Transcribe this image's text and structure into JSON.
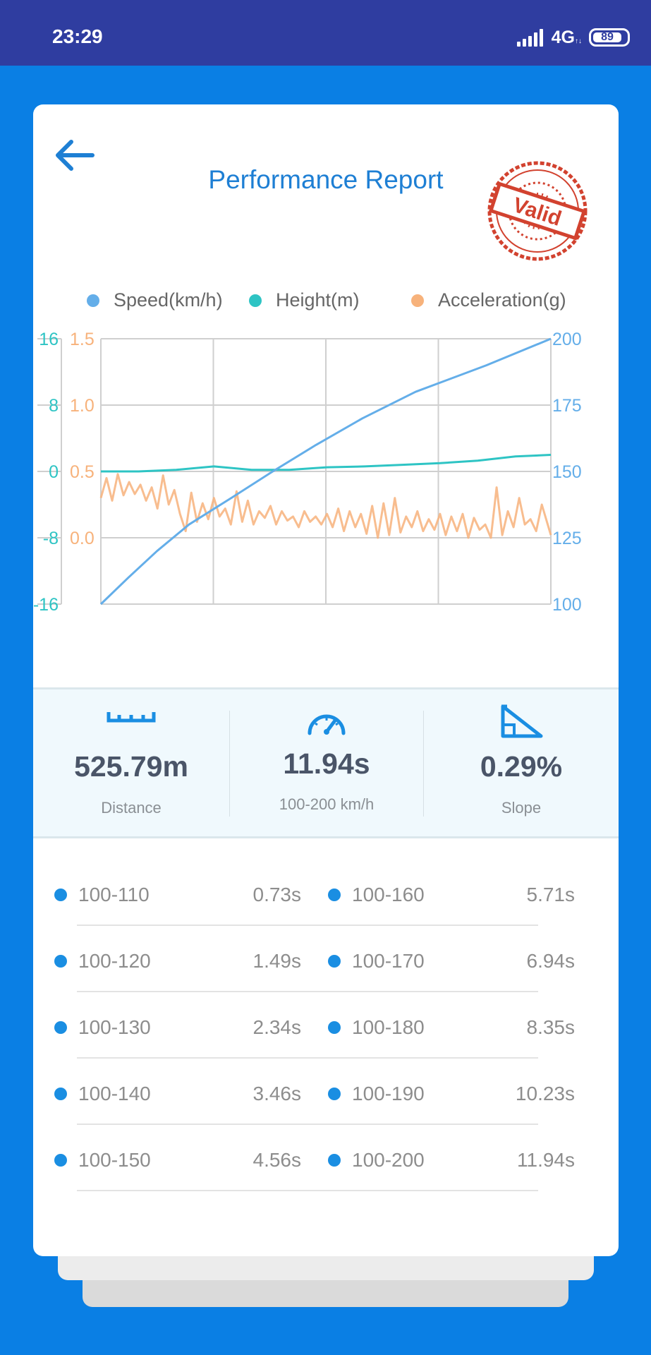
{
  "status_bar": {
    "time": "23:29",
    "network": "4G",
    "battery": "89"
  },
  "header": {
    "title": "Performance Report",
    "stamp_text": "Valid",
    "back_icon": "arrow-left-icon"
  },
  "colors": {
    "speed": "#64aee9",
    "height": "#2ec4c4",
    "acceleration": "#f7b27b",
    "accent": "#1e7fd4",
    "stamp": "#d2422f"
  },
  "chart_data": {
    "type": "line",
    "legend": [
      "Speed(km/h)",
      "Height(m)",
      "Acceleration(g)"
    ],
    "axes": {
      "height_left": {
        "ticks": [
          "16",
          "8",
          "0",
          "-8",
          "-16"
        ],
        "range": [
          -16,
          16
        ]
      },
      "accel_left": {
        "ticks": [
          "1.5",
          "1.0",
          "0.5",
          "0.0"
        ],
        "range": [
          -0.5,
          1.5
        ]
      },
      "speed_right": {
        "ticks": [
          "200",
          "175",
          "150",
          "125",
          "100"
        ],
        "range": [
          100,
          200
        ]
      }
    },
    "grid": true,
    "series": [
      {
        "name": "Speed(km/h)",
        "x": [
          0,
          0.73,
          1.49,
          2.34,
          3.46,
          4.56,
          5.71,
          6.94,
          8.35,
          10.23,
          11.94
        ],
        "y": [
          100,
          110,
          120,
          130,
          140,
          150,
          160,
          170,
          180,
          190,
          200
        ]
      },
      {
        "name": "Height(m)",
        "x": [
          0,
          1,
          2,
          3,
          4,
          5,
          6,
          7,
          8,
          9,
          10,
          11,
          11.94
        ],
        "y": [
          0,
          0,
          0.2,
          0.6,
          0.2,
          0.2,
          0.5,
          0.6,
          0.8,
          1.0,
          1.3,
          1.8,
          2.0
        ]
      },
      {
        "name": "Acceleration(g)",
        "x": [
          0,
          0.15,
          0.3,
          0.45,
          0.6,
          0.75,
          0.9,
          1.05,
          1.2,
          1.35,
          1.5,
          1.65,
          1.8,
          1.95,
          2.1,
          2.25,
          2.4,
          2.55,
          2.7,
          2.85,
          3.0,
          3.15,
          3.3,
          3.45,
          3.6,
          3.75,
          3.9,
          4.05,
          4.2,
          4.35,
          4.5,
          4.65,
          4.8,
          4.95,
          5.1,
          5.25,
          5.4,
          5.55,
          5.7,
          5.85,
          6.0,
          6.15,
          6.3,
          6.45,
          6.6,
          6.75,
          6.9,
          7.05,
          7.2,
          7.35,
          7.5,
          7.65,
          7.8,
          7.95,
          8.1,
          8.25,
          8.4,
          8.55,
          8.7,
          8.85,
          9.0,
          9.15,
          9.3,
          9.45,
          9.6,
          9.75,
          9.9,
          10.05,
          10.2,
          10.35,
          10.5,
          10.65,
          10.8,
          10.95,
          11.1,
          11.25,
          11.4,
          11.55,
          11.7,
          11.94
        ],
        "y": [
          0.3,
          0.45,
          0.28,
          0.48,
          0.32,
          0.42,
          0.33,
          0.4,
          0.28,
          0.38,
          0.22,
          0.47,
          0.25,
          0.36,
          0.18,
          0.05,
          0.34,
          0.12,
          0.26,
          0.14,
          0.3,
          0.16,
          0.22,
          0.1,
          0.35,
          0.12,
          0.28,
          0.1,
          0.2,
          0.15,
          0.24,
          0.1,
          0.2,
          0.13,
          0.16,
          0.08,
          0.2,
          0.12,
          0.16,
          0.1,
          0.18,
          0.08,
          0.22,
          0.05,
          0.2,
          0.08,
          0.18,
          0.03,
          0.24,
          0.0,
          0.26,
          0.02,
          0.3,
          0.04,
          0.16,
          0.08,
          0.2,
          0.05,
          0.14,
          0.06,
          0.18,
          0.02,
          0.16,
          0.05,
          0.18,
          0.0,
          0.15,
          0.06,
          0.1,
          0.0,
          0.38,
          0.02,
          0.2,
          0.08,
          0.3,
          0.1,
          0.14,
          0.05,
          0.25,
          0.02
        ]
      }
    ]
  },
  "stats": [
    {
      "icon": "ruler-icon",
      "value": "525.79m",
      "label": "Distance"
    },
    {
      "icon": "speedometer-icon",
      "value": "11.94s",
      "label": "100-200 km/h"
    },
    {
      "icon": "slope-icon",
      "value": "0.29%",
      "label": "Slope"
    }
  ],
  "splits": {
    "left": [
      {
        "label": "100-110",
        "value": "0.73s"
      },
      {
        "label": "100-120",
        "value": "1.49s"
      },
      {
        "label": "100-130",
        "value": "2.34s"
      },
      {
        "label": "100-140",
        "value": "3.46s"
      },
      {
        "label": "100-150",
        "value": "4.56s"
      }
    ],
    "right": [
      {
        "label": "100-160",
        "value": "5.71s"
      },
      {
        "label": "100-170",
        "value": "6.94s"
      },
      {
        "label": "100-180",
        "value": "8.35s"
      },
      {
        "label": "100-190",
        "value": "10.23s"
      },
      {
        "label": "100-200",
        "value": "11.94s"
      }
    ]
  }
}
